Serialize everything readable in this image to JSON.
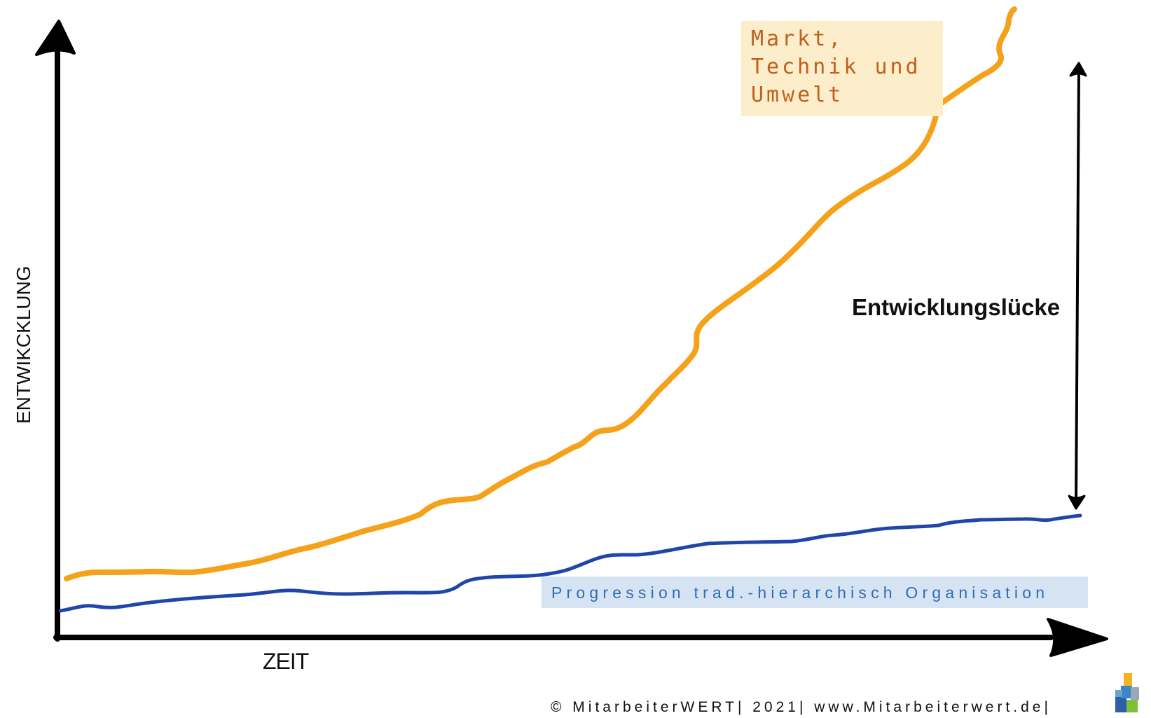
{
  "labels": {
    "market_lines": [
      "Markt,",
      "Technik und",
      "Umwelt"
    ],
    "organisation": "Progression trad.-hierarchisch Organisation",
    "gap": "Entwicklungslücke",
    "x_axis": "ZEIT",
    "y_axis": "ENTWIKCKLUNG",
    "footer": "© MitarbeiterWERT| 2021| www.Mitarbeiterwert.de|"
  },
  "colors": {
    "market": "#f5a11a",
    "organisation": "#1f46a8",
    "axis": "#000000",
    "market_box": "#fdeecb",
    "market_text": "#c0601d",
    "organisation_box": "#d6e3f3",
    "organisation_text": "#2f6db5"
  },
  "icons": {
    "gap_arrow": "double-headed-vertical-arrow",
    "logo": "stacked-cubes-logo"
  }
}
